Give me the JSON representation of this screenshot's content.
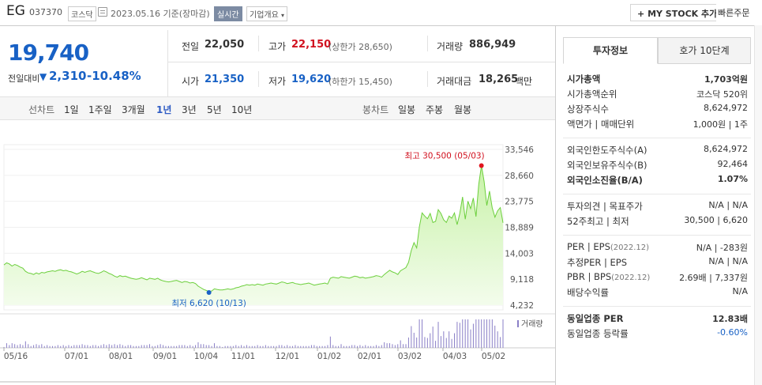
{
  "header": {
    "name": "EG",
    "code": "037370",
    "market": "코스닥",
    "date": "2023.05.16  기준(장마감)",
    "live": "실시간",
    "company": "기업개요",
    "mystock": "MY STOCK 추가",
    "quick_order": "빠른주문"
  },
  "price": {
    "current": "19,740",
    "diff_label": "전일대비",
    "diff": "2,310",
    "diff_pct": "-10.48%"
  },
  "quotes": {
    "prev_label": "전일",
    "prev": "22,050",
    "high_label": "고가",
    "high": "22,150",
    "upper_limit": "(상한가 28,650)",
    "volume_label": "거래량",
    "volume": "886,949",
    "open_label": "시가",
    "open": "21,350",
    "low_label": "저가",
    "low": "19,620",
    "lower_limit": "(하한가 15,450)",
    "amount_label": "거래대금",
    "amount": "18,265",
    "amount_unit": "백만"
  },
  "periods": {
    "line_label": "선차트",
    "items": [
      "1일",
      "1주일",
      "3개월",
      "1년",
      "3년",
      "5년",
      "10년"
    ],
    "active": "1년",
    "candle_label": "봉차트",
    "candle_items": [
      "일봉",
      "주봉",
      "월봉"
    ]
  },
  "chart_data": {
    "type": "area",
    "y_ticks": [
      "33,546",
      "28,660",
      "23,775",
      "18,889",
      "14,003",
      "9,118",
      "4,232"
    ],
    "ylim": [
      4232,
      33546
    ],
    "x_ticks": [
      "05/16",
      "07/01",
      "08/01",
      "09/01",
      "10/04",
      "11/01",
      "12/01",
      "01/02",
      "02/01",
      "03/02",
      "04/03",
      "05/02"
    ],
    "values": [
      11800,
      12200,
      12000,
      11600,
      11900,
      11700,
      11400,
      11200,
      10600,
      10300,
      10200,
      10000,
      10300,
      10100,
      10400,
      10300,
      10500,
      10600,
      10700,
      10600,
      10800,
      10900,
      10700,
      10800,
      10600,
      10500,
      10300,
      10100,
      10300,
      10600,
      10400,
      10600,
      10700,
      10500,
      10300,
      10200,
      10400,
      10700,
      10500,
      10200,
      10000,
      9700,
      9500,
      9800,
      9600,
      9700,
      9500,
      9300,
      9200,
      9100,
      9200,
      9400,
      9200,
      9000,
      9300,
      9200,
      9100,
      9300,
      9000,
      8800,
      8700,
      8600,
      8700,
      8800,
      8900,
      8700,
      8500,
      8700,
      8600,
      8400,
      8500,
      8300,
      7800,
      7500,
      7200,
      7000,
      6800,
      6900,
      7300,
      7200,
      7100,
      7100,
      7200,
      7300,
      7200,
      7300,
      7500,
      7600,
      7800,
      7900,
      8100,
      8000,
      8100,
      8000,
      8200,
      8100,
      8000,
      8200,
      8300,
      8400,
      8300,
      8200,
      8400,
      8600,
      8500,
      8300,
      8400,
      8500,
      8300,
      8200,
      8100,
      8200,
      8300,
      8400,
      8200,
      8000,
      8100,
      8200,
      8300,
      8400,
      8200,
      9300,
      9500,
      9400,
      9300,
      9600,
      9500,
      9400,
      9300,
      9500,
      9700,
      9600,
      9400,
      9500,
      9300,
      9400,
      9500,
      9600,
      9800,
      9700,
      9500,
      10000,
      10400,
      10800,
      10500,
      10300,
      10000,
      10700,
      11000,
      11300,
      12300,
      14500,
      16000,
      15000,
      19000,
      21600,
      21000,
      20500,
      21500,
      19800,
      20000,
      22200,
      21500,
      20300,
      19800,
      21000,
      20600,
      21600,
      19400,
      21500,
      24600,
      20400,
      23800,
      22400,
      24400,
      20900,
      27000,
      30500,
      27500,
      23000,
      25700,
      22600,
      20800,
      22000,
      22600,
      19740
    ],
    "max_label": "최고 30,500 (05/03)",
    "min_label": "최저 6,620 (10/13)",
    "max_value": 30500,
    "min_value": 6620,
    "volume_label": "거래량"
  },
  "invest": {
    "tab_on": "투자정보",
    "tab_off": "호가 10단계",
    "rows1": [
      {
        "label": "시가총액",
        "value": "1,703억원",
        "bold": true
      },
      {
        "label": "시가총액순위",
        "value": "코스닥 520위"
      },
      {
        "label": "상장주식수",
        "value": "8,624,972"
      },
      {
        "label": "액면가 | 매매단위",
        "value": "1,000원 | 1주"
      }
    ],
    "rows2": [
      {
        "label": "외국인한도주식수(A)",
        "value": "8,624,972"
      },
      {
        "label": "외국인보유주식수(B)",
        "value": "92,464"
      },
      {
        "label": "외국인소진율(B/A)",
        "value": "1.07%",
        "bold": true
      }
    ],
    "rows3": [
      {
        "label": "투자의견 | 목표주가",
        "value": "N/A | N/A"
      },
      {
        "label": "52주최고 | 최저",
        "value": "30,500 | 6,620"
      }
    ],
    "rows4": [
      {
        "label": "PER | EPS",
        "sub": "(2022.12)",
        "value": "N/A | -283원"
      },
      {
        "label": "추정PER | EPS",
        "sub": "",
        "value": "N/A | N/A"
      },
      {
        "label": "PBR | BPS",
        "sub": "(2022.12)",
        "value": "2.69배 | 7,337원"
      },
      {
        "label": "배당수익률",
        "sub": "",
        "value": "N/A"
      }
    ],
    "rows5": [
      {
        "label": "동일업종 PER",
        "value": "12.83배",
        "bold": true
      },
      {
        "label": "동일업종 등락률",
        "value": "-0.60%",
        "color": "#1861c5"
      }
    ]
  }
}
